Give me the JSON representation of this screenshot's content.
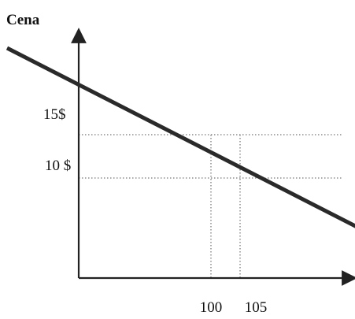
{
  "colors": {
    "curve": "#2a2a2a",
    "axis": "#222222",
    "guide": "#555555"
  },
  "chart_data": {
    "type": "line",
    "title": "",
    "ylabel": "Cena",
    "xlabel": "",
    "xlim": [
      30,
      135
    ],
    "ylim": [
      0,
      24
    ],
    "y_ticks": [
      {
        "value": 15,
        "label": "15$"
      },
      {
        "value": 10,
        "label": "10 $"
      }
    ],
    "x_ticks": [
      {
        "value": 100,
        "label": "100"
      },
      {
        "value": 105,
        "label": "105"
      }
    ],
    "series": [
      {
        "x": [
          65,
          129
        ],
        "y": [
          25,
          3
        ]
      }
    ],
    "reference_lines": {
      "horizontal": [
        15,
        10
      ],
      "vertical": [
        100,
        105
      ],
      "style": "dotted"
    },
    "grid": false,
    "legend": "none"
  }
}
